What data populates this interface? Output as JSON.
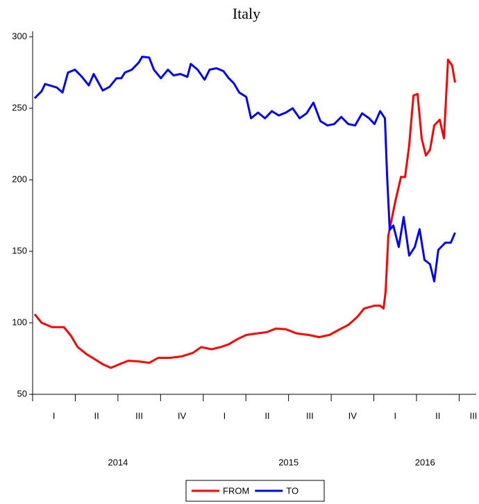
{
  "chart_data": {
    "type": "line",
    "title": "Italy",
    "xlim": [
      2014,
      2016.6
    ],
    "ylim": [
      50,
      300
    ],
    "yticks": [
      50,
      100,
      150,
      200,
      250,
      300
    ],
    "xticks": [
      {
        "value": 2014,
        "label": "I"
      },
      {
        "value": 2014.25,
        "label": "II"
      },
      {
        "value": 2014.5,
        "label": "III"
      },
      {
        "value": 2014.75,
        "label": "IV"
      },
      {
        "value": 2015,
        "label": "I"
      },
      {
        "value": 2015.25,
        "label": "II"
      },
      {
        "value": 2015.5,
        "label": "III"
      },
      {
        "value": 2015.75,
        "label": "IV"
      },
      {
        "value": 2016,
        "label": "I"
      },
      {
        "value": 2016.25,
        "label": "II"
      },
      {
        "value": 2016.5,
        "label": "III"
      }
    ],
    "year_labels": [
      {
        "value": 2014.5,
        "label": "2014"
      },
      {
        "value": 2015.5,
        "label": "2015"
      },
      {
        "value": 2016.3,
        "label": "2016"
      }
    ],
    "series": [
      {
        "name": "FROM",
        "color": "#ff0000",
        "x": [
          2014.012,
          2014.053,
          2014.114,
          2014.183,
          2014.224,
          2014.264,
          2014.317,
          2014.358,
          2014.411,
          2014.459,
          2014.508,
          2014.561,
          2014.622,
          2014.683,
          2014.736,
          2014.805,
          2014.874,
          2014.939,
          2014.988,
          2015.049,
          2015.102,
          2015.15,
          2015.199,
          2015.252,
          2015.313,
          2015.374,
          2015.427,
          2015.484,
          2015.549,
          2015.618,
          2015.679,
          2015.74,
          2015.793,
          2015.85,
          2015.902,
          2015.943,
          2016.004,
          2016.037,
          2016.057,
          2016.069,
          2016.085,
          2016.126,
          2016.159,
          2016.183,
          2016.207,
          2016.232,
          2016.256,
          2016.28,
          2016.305,
          2016.329,
          2016.354,
          2016.386,
          2016.411,
          2016.435,
          2016.459,
          2016.476
        ],
        "values": [
          106,
          100,
          97,
          97,
          91,
          83,
          78,
          75,
          71,
          68.5,
          71,
          73.5,
          73,
          72,
          75.5,
          75.5,
          76.5,
          79,
          83,
          81.5,
          83,
          85,
          88.5,
          91.5,
          92.5,
          93.5,
          96,
          95.5,
          92.5,
          91.5,
          90,
          91.5,
          95,
          98.5,
          104,
          110,
          112,
          112,
          110,
          122,
          161,
          185,
          202,
          202,
          224,
          259,
          260,
          229,
          217,
          221,
          238,
          242,
          229,
          284,
          280,
          268
        ]
      },
      {
        "name": "TO",
        "color": "#0000ff",
        "x": [
          2014.012,
          2014.053,
          2014.073,
          2014.114,
          2014.142,
          2014.175,
          2014.207,
          2014.248,
          2014.289,
          2014.329,
          2014.358,
          2014.411,
          2014.451,
          2014.492,
          2014.52,
          2014.541,
          2014.581,
          2014.622,
          2014.642,
          2014.683,
          2014.711,
          2014.752,
          2014.793,
          2014.826,
          2014.866,
          2014.907,
          2014.927,
          2014.967,
          2015.008,
          2015.037,
          2015.077,
          2015.118,
          2015.15,
          2015.179,
          2015.211,
          2015.252,
          2015.28,
          2015.321,
          2015.362,
          2015.402,
          2015.443,
          2015.484,
          2015.524,
          2015.565,
          2015.606,
          2015.646,
          2015.687,
          2015.728,
          2015.768,
          2015.809,
          2015.85,
          2015.89,
          2015.931,
          2015.972,
          2016.004,
          2016.037,
          2016.065,
          2016.077,
          2016.093,
          2016.114,
          2016.146,
          2016.175,
          2016.207,
          2016.24,
          2016.268,
          2016.297,
          2016.329,
          2016.354,
          2016.378,
          2016.419,
          2016.451,
          2016.476
        ],
        "values": [
          257,
          262,
          267,
          265.5,
          264.5,
          261,
          275,
          277,
          272,
          266,
          274,
          262.5,
          265,
          271,
          271,
          275,
          277,
          282,
          286,
          285.5,
          277,
          271,
          277,
          273,
          274,
          272,
          281,
          277,
          270,
          277,
          278,
          276,
          271,
          267.5,
          261,
          258,
          243,
          247,
          243,
          248,
          245,
          247,
          250,
          243,
          246.5,
          254,
          241,
          238,
          239,
          244,
          239,
          238,
          246.5,
          243,
          239,
          248,
          243,
          204,
          165,
          168,
          153,
          174,
          147,
          153,
          165.5,
          144,
          141,
          129,
          151,
          156,
          156,
          163
        ]
      }
    ]
  }
}
